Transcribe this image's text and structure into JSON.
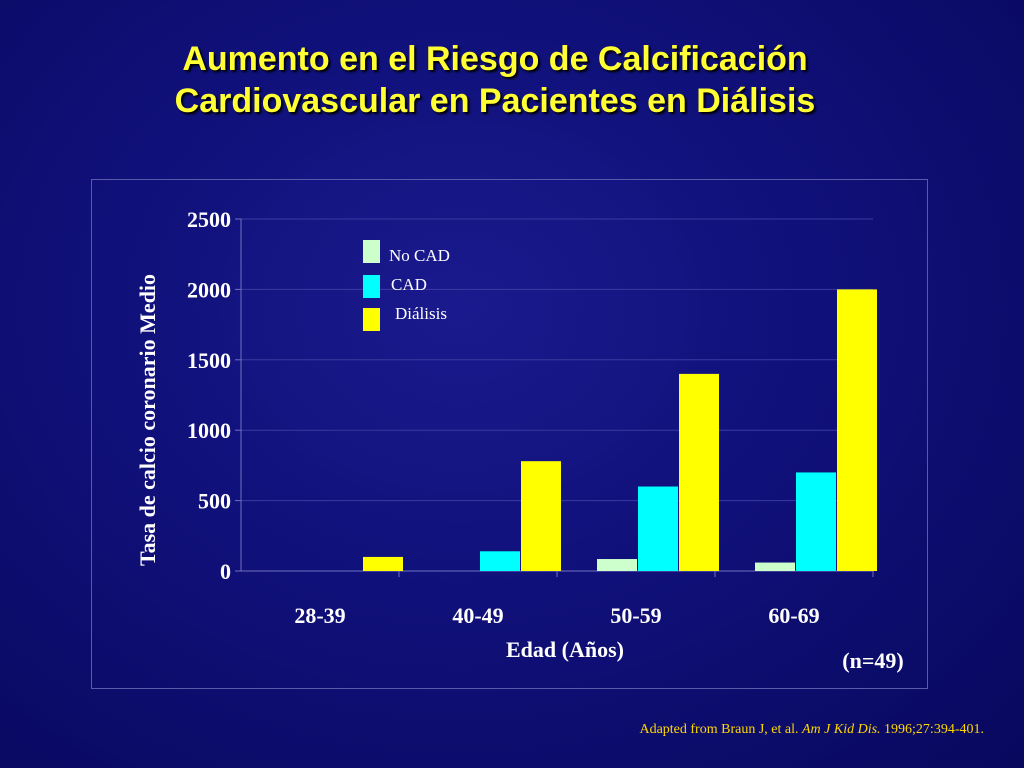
{
  "slide": {
    "title_line1": "Aumento en el Riesgo de Calcificación",
    "title_line2": "Cardiovascular en Pacientes en Diálisis",
    "sample_note": "(n=49)",
    "citation": {
      "prefix": "Adapted from Braun J, et al. ",
      "journal": "Am J Kid Dis.",
      "suffix": " 1996;27:394-401."
    }
  },
  "chart_data": {
    "type": "bar",
    "categories": [
      "28-39",
      "40-49",
      "50-59",
      "60-69"
    ],
    "series": [
      {
        "name": "No CAD",
        "color": "#ccffcc",
        "values": [
          0,
          0,
          85,
          60
        ]
      },
      {
        "name": "CAD",
        "color": "#00ffff",
        "values": [
          0,
          140,
          600,
          700
        ]
      },
      {
        "name": "Diálisis",
        "color": "#ffff00",
        "values": [
          100,
          780,
          1400,
          2000
        ]
      }
    ],
    "yticks": [
      "0",
      "500",
      "1000",
      "1500",
      "2000",
      "2500"
    ],
    "ylim": [
      0,
      2500
    ],
    "xlabel": "Edad (Años)",
    "ylabel": "Tasa de calcio coronario Medio",
    "grid": true,
    "legend_position": "top-center"
  }
}
